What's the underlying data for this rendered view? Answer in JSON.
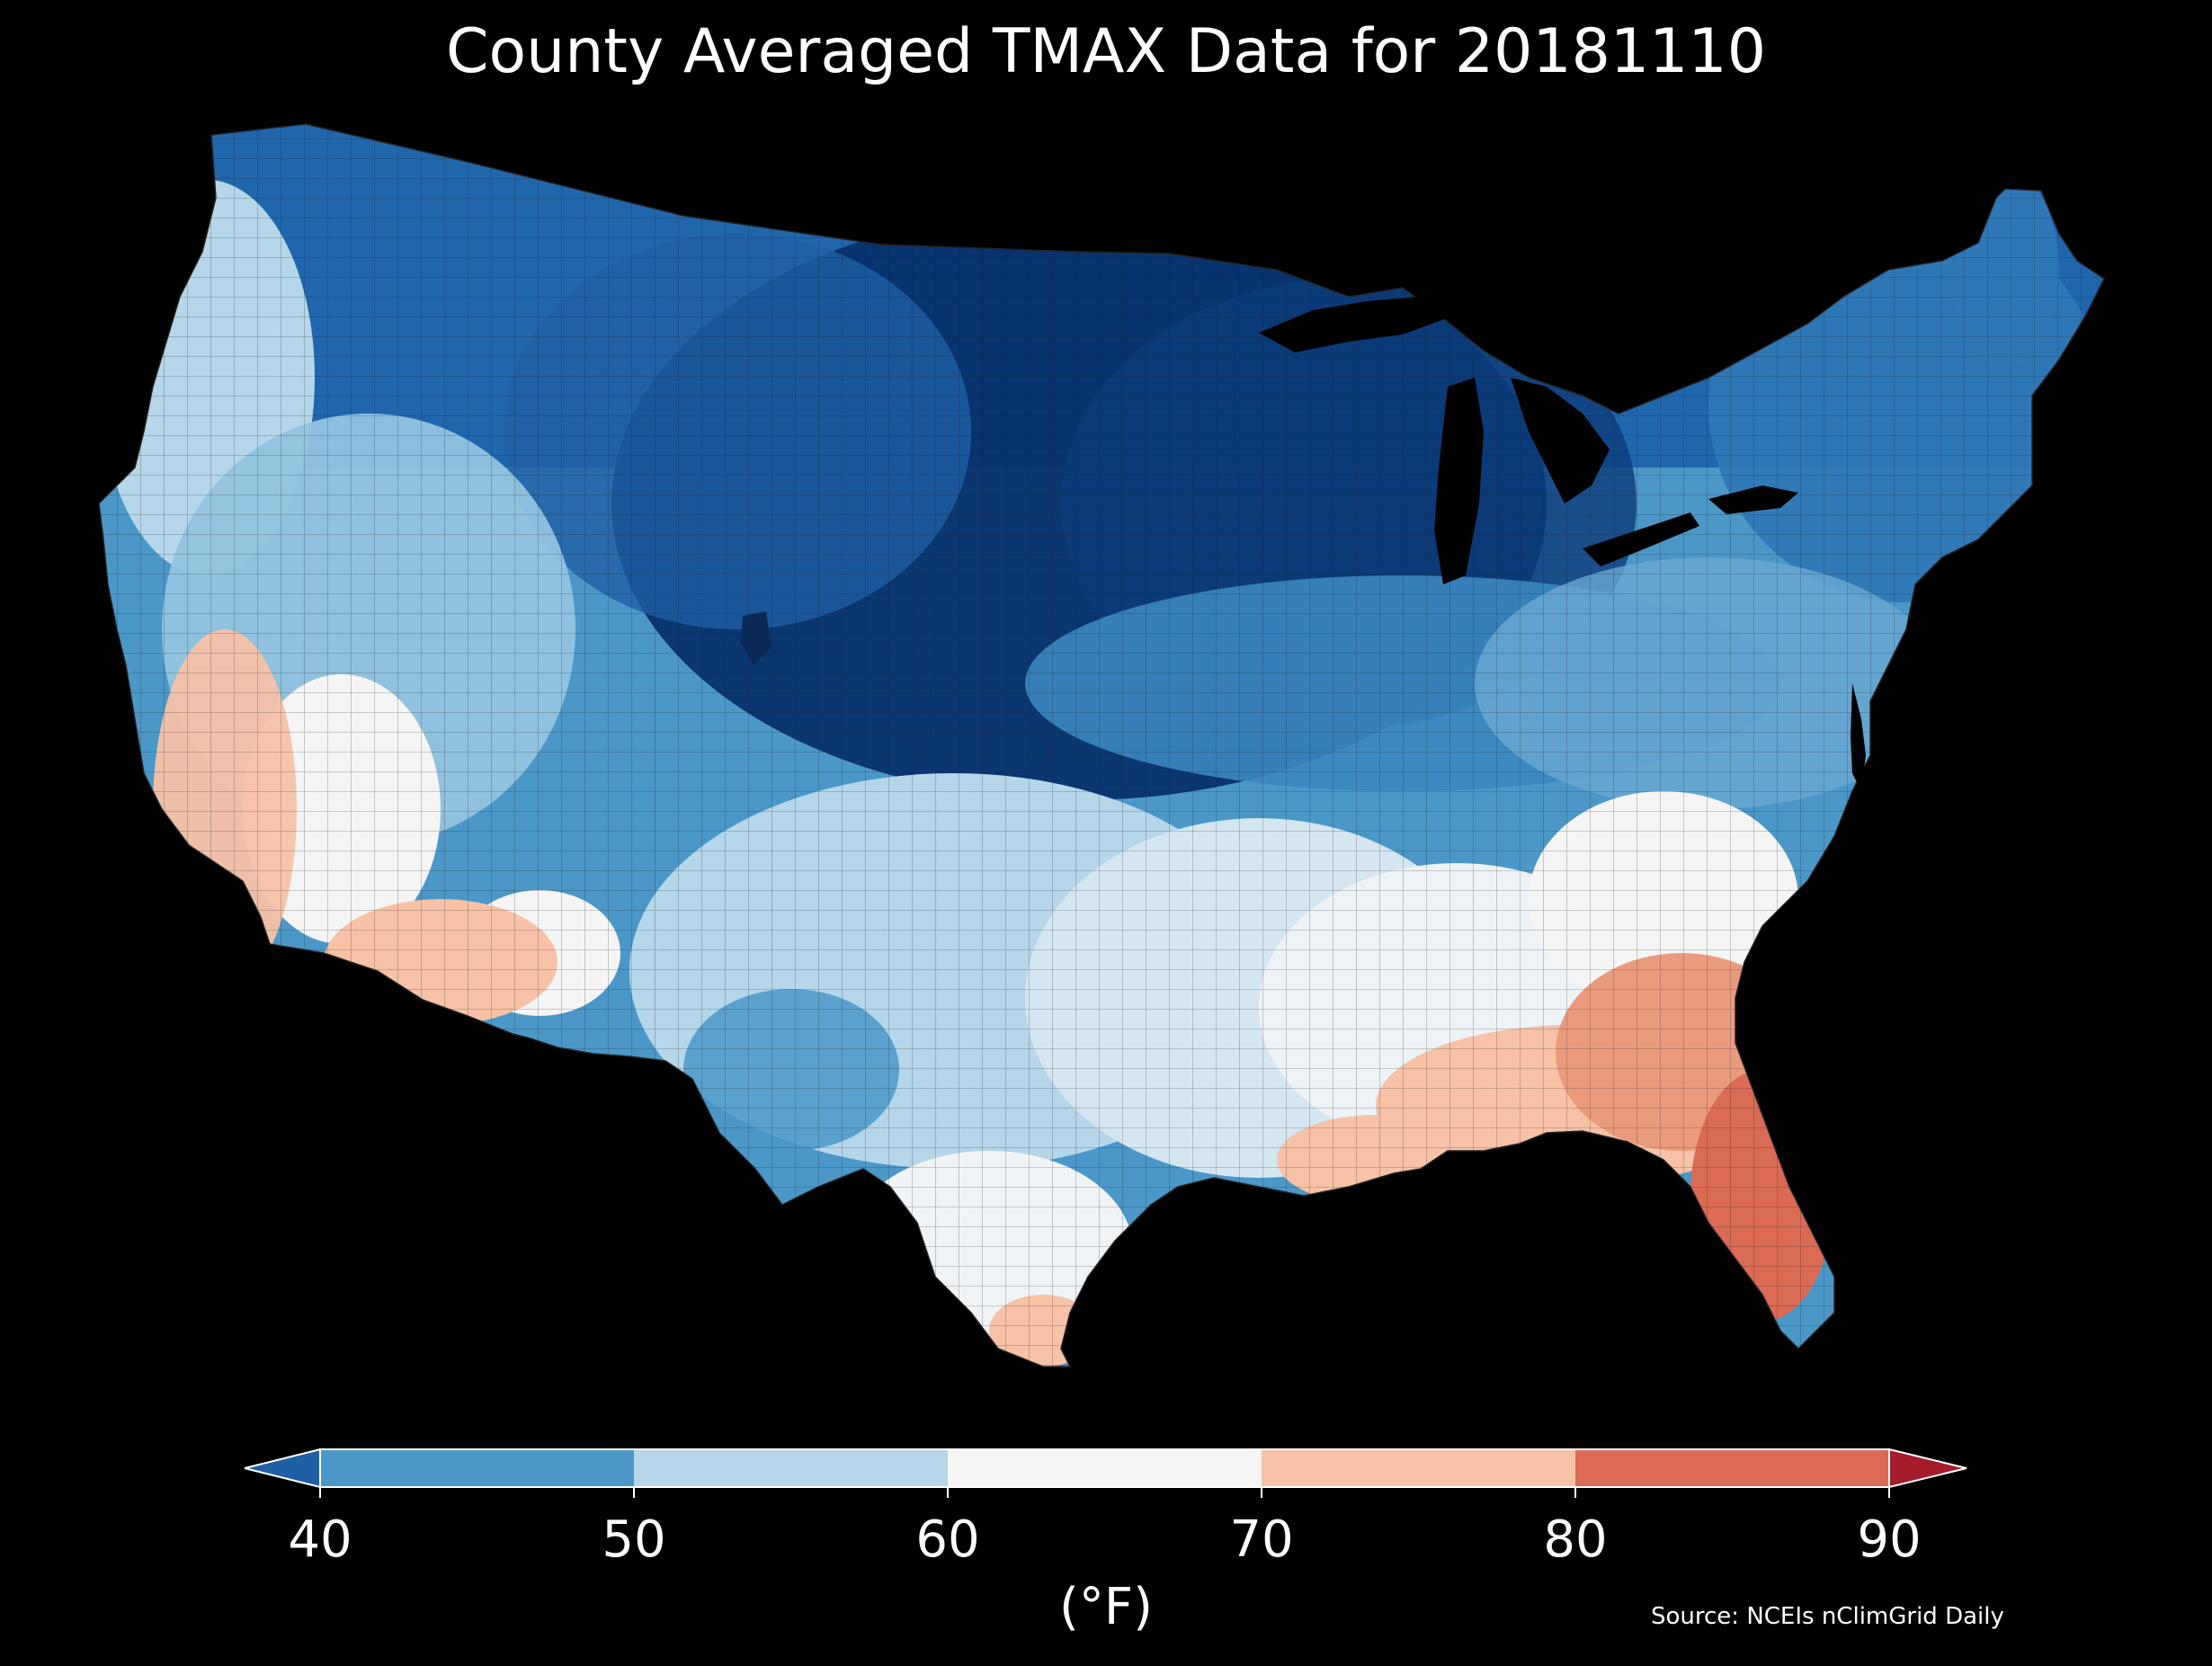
{
  "title": "County Averaged TMAX Data for 20181110",
  "colorbar": {
    "ticks": [
      "40",
      "50",
      "60",
      "70",
      "80",
      "90"
    ],
    "unit": "(°F)",
    "bins": [
      {
        "from": 40,
        "to": 50,
        "color": "#4b98c8"
      },
      {
        "from": 50,
        "to": 60,
        "color": "#b6d6e9"
      },
      {
        "from": 60,
        "to": 70,
        "color": "#f5f5f5"
      },
      {
        "from": 70,
        "to": 80,
        "color": "#f7c2a6"
      },
      {
        "from": 80,
        "to": 90,
        "color": "#db6b55"
      }
    ],
    "under_color": "#1f5fa5",
    "over_color": "#a51c2d"
  },
  "source": "Source: NCEIs nClimGrid Daily",
  "map": {
    "region": "Contiguous United States",
    "background": "#000000",
    "palette": {
      "cold_extreme": "#08306b",
      "cold": "#2066ad",
      "cool": "#4b98c8",
      "mild": "#b6d6e9",
      "neutral": "#f5f5f5",
      "warm": "#f7c2a6",
      "hot": "#db6b55"
    }
  }
}
